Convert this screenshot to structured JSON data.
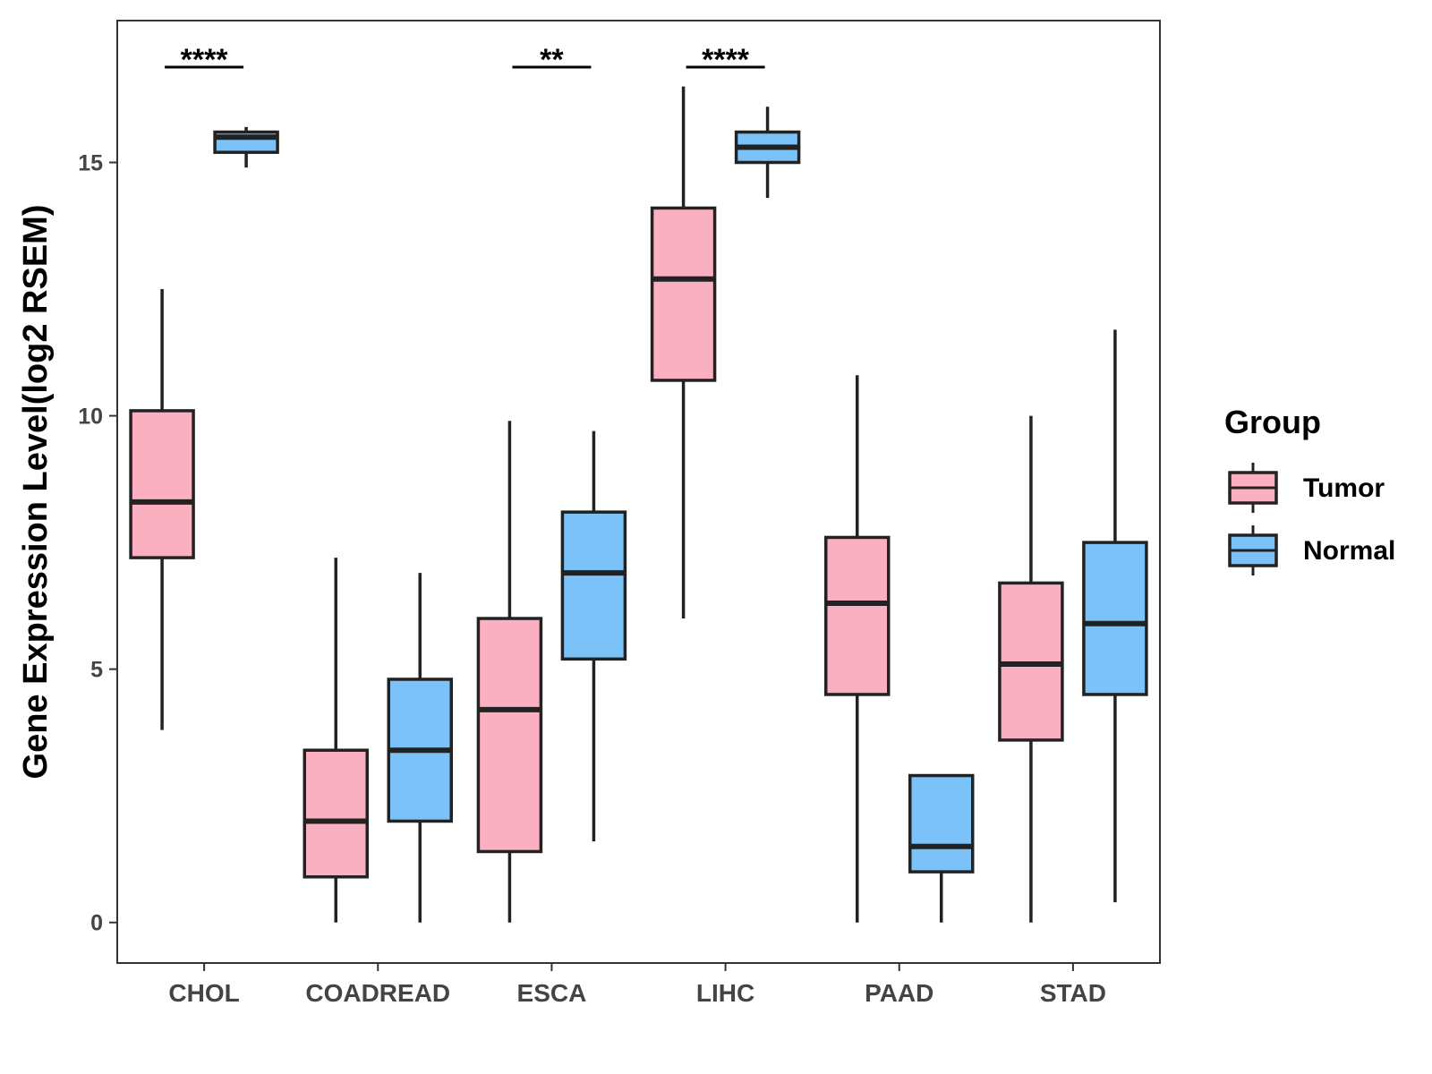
{
  "chart_data": {
    "type": "boxplot",
    "title": "",
    "xlabel": "",
    "ylabel": "Gene Expression Level(log2 RSEM)",
    "ylim": [
      -0.8,
      17.8
    ],
    "yticks": [
      0,
      5,
      10,
      15
    ],
    "categories": [
      "CHOL",
      "COADREAD",
      "ESCA",
      "LIHC",
      "PAAD",
      "STAD"
    ],
    "legend": {
      "title": "Group",
      "position": "right",
      "entries": [
        "Tumor",
        "Normal"
      ]
    },
    "series": [
      {
        "name": "Tumor",
        "color": "#fbb0c2",
        "boxes": [
          {
            "category": "CHOL",
            "min": 3.8,
            "q1": 7.2,
            "median": 8.3,
            "q3": 10.1,
            "max": 12.5
          },
          {
            "category": "COADREAD",
            "min": 0.0,
            "q1": 0.9,
            "median": 2.0,
            "q3": 3.4,
            "max": 7.2
          },
          {
            "category": "ESCA",
            "min": 0.0,
            "q1": 1.4,
            "median": 4.2,
            "q3": 6.0,
            "max": 9.9
          },
          {
            "category": "LIHC",
            "min": 6.0,
            "q1": 10.7,
            "median": 12.7,
            "q3": 14.1,
            "max": 16.5
          },
          {
            "category": "PAAD",
            "min": 0.0,
            "q1": 4.5,
            "median": 6.3,
            "q3": 7.6,
            "max": 10.8
          },
          {
            "category": "STAD",
            "min": 0.0,
            "q1": 3.6,
            "median": 5.1,
            "q3": 6.7,
            "max": 10.0
          }
        ]
      },
      {
        "name": "Normal",
        "color": "#7ac2f8",
        "boxes": [
          {
            "category": "CHOL",
            "min": 14.9,
            "q1": 15.2,
            "median": 15.5,
            "q3": 15.6,
            "max": 15.7
          },
          {
            "category": "COADREAD",
            "min": 0.0,
            "q1": 2.0,
            "median": 3.4,
            "q3": 4.8,
            "max": 6.9
          },
          {
            "category": "ESCA",
            "min": 1.6,
            "q1": 5.2,
            "median": 6.9,
            "q3": 8.1,
            "max": 9.7
          },
          {
            "category": "LIHC",
            "min": 14.3,
            "q1": 15.0,
            "median": 15.3,
            "q3": 15.6,
            "max": 16.1
          },
          {
            "category": "PAAD",
            "min": 0.0,
            "q1": 1.0,
            "median": 1.5,
            "q3": 2.9,
            "max": 2.9
          },
          {
            "category": "STAD",
            "min": 0.4,
            "q1": 4.5,
            "median": 5.9,
            "q3": 7.5,
            "max": 11.7
          }
        ]
      }
    ],
    "annotations": [
      {
        "category": "CHOL",
        "label": "****"
      },
      {
        "category": "ESCA",
        "label": "**"
      },
      {
        "category": "LIHC",
        "label": "****"
      }
    ]
  }
}
